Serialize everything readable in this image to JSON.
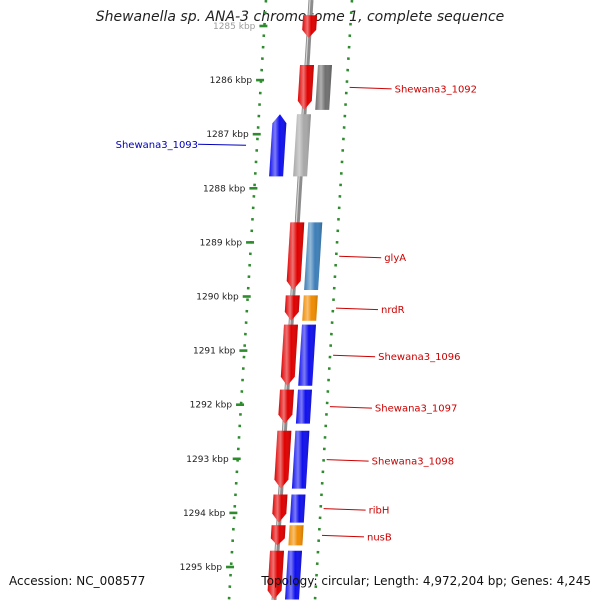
{
  "title": "Shewanella sp. ANA-3 chromosome 1, complete sequence",
  "footer": {
    "accession": "Accession: NC_008577",
    "topology": "Topology: circular; Length: 4,972,204 bp; Genes: 4,245"
  },
  "colors": {
    "backbone": "#8c8c8c",
    "dots": "#2e8b2e",
    "label_forward": "#cc0000",
    "label_reverse": "#0000bb"
  },
  "scale": {
    "unit": "kbp",
    "ticks": [
      "1285 kbp",
      "1286 kbp",
      "1287 kbp",
      "1288 kbp",
      "1289 kbp",
      "1290 kbp",
      "1291 kbp",
      "1292 kbp",
      "1293 kbp",
      "1294 kbp",
      "1295 kbp"
    ]
  },
  "genes": [
    {
      "label": "",
      "strand": "+",
      "ring": 1,
      "start": 1284.8,
      "end": 1285.22,
      "color": "#e00000"
    },
    {
      "label": "Shewana3_1092",
      "strand": "+",
      "ring": 1,
      "start": 1285.72,
      "end": 1286.55,
      "color": "#e00000"
    },
    {
      "label": "",
      "strand": "+",
      "ring": 2,
      "start": 1285.72,
      "end": 1286.55,
      "color": "#707070"
    },
    {
      "label": "Shewana3_1093",
      "strand": "-",
      "ring": 0,
      "start": 1286.63,
      "end": 1287.78,
      "color": "#1010ee"
    },
    {
      "label": "",
      "strand": "-",
      "ring": 1,
      "start": 1286.63,
      "end": 1287.78,
      "color": "#a8a8a8"
    },
    {
      "label": "glyA",
      "strand": "+",
      "ring": 1,
      "start": 1288.63,
      "end": 1289.88,
      "color": "#e00000"
    },
    {
      "label": "",
      "strand": "+",
      "ring": 2,
      "start": 1288.63,
      "end": 1289.88,
      "color": "#3d7fb8"
    },
    {
      "label": "nrdR",
      "strand": "+",
      "ring": 1,
      "start": 1289.98,
      "end": 1290.45,
      "color": "#e00000"
    },
    {
      "label": "",
      "strand": "+",
      "ring": 2,
      "start": 1289.98,
      "end": 1290.45,
      "color": "#f08c00"
    },
    {
      "label": "Shewana3_1096",
      "strand": "+",
      "ring": 1,
      "start": 1290.52,
      "end": 1291.65,
      "color": "#e00000"
    },
    {
      "label": "",
      "strand": "+",
      "ring": 2,
      "start": 1290.52,
      "end": 1291.65,
      "color": "#1010ee"
    },
    {
      "label": "Shewana3_1097",
      "strand": "+",
      "ring": 1,
      "start": 1291.72,
      "end": 1292.35,
      "color": "#e00000"
    },
    {
      "label": "",
      "strand": "+",
      "ring": 2,
      "start": 1291.72,
      "end": 1292.35,
      "color": "#1010ee"
    },
    {
      "label": "Shewana3_1098",
      "strand": "+",
      "ring": 1,
      "start": 1292.48,
      "end": 1293.55,
      "color": "#e00000"
    },
    {
      "label": "",
      "strand": "+",
      "ring": 2,
      "start": 1292.48,
      "end": 1293.55,
      "color": "#1010ee"
    },
    {
      "label": "ribH",
      "strand": "+",
      "ring": 1,
      "start": 1293.66,
      "end": 1294.18,
      "color": "#e00000"
    },
    {
      "label": "",
      "strand": "+",
      "ring": 2,
      "start": 1293.66,
      "end": 1294.18,
      "color": "#1010ee"
    },
    {
      "label": "nusB",
      "strand": "+",
      "ring": 1,
      "start": 1294.23,
      "end": 1294.6,
      "color": "#e00000"
    },
    {
      "label": "",
      "strand": "+",
      "ring": 2,
      "start": 1294.23,
      "end": 1294.6,
      "color": "#f08c00"
    },
    {
      "label": "",
      "strand": "+",
      "ring": 1,
      "start": 1294.7,
      "end": 1295.6,
      "color": "#e00000"
    },
    {
      "label": "",
      "strand": "+",
      "ring": 2,
      "start": 1294.7,
      "end": 1295.6,
      "color": "#1010ee"
    }
  ]
}
